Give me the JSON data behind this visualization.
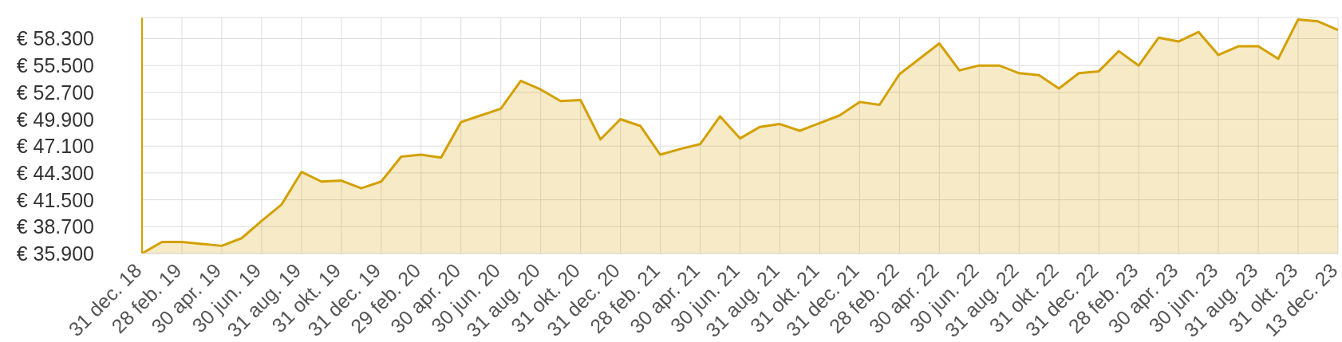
{
  "chart_data": {
    "type": "area",
    "categories": [
      "31 dec. 18",
      null,
      "28 feb. 19",
      null,
      "30 apr. 19",
      null,
      "30 jun. 19",
      null,
      "31 aug. 19",
      null,
      "31 okt. 19",
      null,
      "31 dec. 19",
      null,
      "29 feb. 20",
      null,
      "30 apr. 20",
      null,
      "30 jun. 20",
      null,
      "31 aug. 20",
      null,
      "31 okt. 20",
      null,
      "31 dec. 20",
      null,
      "28 feb. 21",
      null,
      "30 apr. 21",
      null,
      "30 jun. 21",
      null,
      "31 aug. 21",
      null,
      "31 okt. 21",
      null,
      "31 dec. 21",
      null,
      "28 feb. 22",
      null,
      "30 apr. 22",
      null,
      "30 jun. 22",
      null,
      "31 aug. 22",
      null,
      "31 okt. 22",
      null,
      "31 dec. 22",
      null,
      "28 feb. 23",
      null,
      "30 apr. 23",
      null,
      "30 jun. 23",
      null,
      "31 aug. 23",
      null,
      "31 okt. 23",
      null,
      "13 dec. 23"
    ],
    "series": [
      {
        "color": "#d4a000",
        "values": [
          35900,
          37100,
          37100,
          36900,
          36700,
          37500,
          39300,
          41000,
          44400,
          43400,
          43500,
          42700,
          43400,
          46000,
          46200,
          45900,
          49600,
          50300,
          51000,
          53900,
          53000,
          51800,
          51900,
          47800,
          49900,
          49200,
          46200,
          46800,
          47300,
          50200,
          47900,
          49100,
          49400,
          48700,
          49500,
          50300,
          51700,
          51400,
          54600,
          56200,
          57800,
          55000,
          55500,
          55500,
          54700,
          54500,
          53100,
          54700,
          54900,
          57000,
          55500,
          58400,
          58000,
          59000,
          56600,
          57500,
          57500,
          56200,
          60300,
          60100,
          59200
        ]
      }
    ],
    "ylim": [
      35900,
      60500
    ],
    "yticks": [
      {
        "value": 35900,
        "label": "€ 35.900"
      },
      {
        "value": 38700,
        "label": "€ 38.700"
      },
      {
        "value": 41500,
        "label": "€ 41.500"
      },
      {
        "value": 44300,
        "label": "€ 44.300"
      },
      {
        "value": 47100,
        "label": "€ 47.100"
      },
      {
        "value": 49900,
        "label": "€ 49.900"
      },
      {
        "value": 52700,
        "label": "€ 52.700"
      },
      {
        "value": 55500,
        "label": "€ 55.500"
      },
      {
        "value": 58300,
        "label": "€ 58.300"
      }
    ],
    "grid": true
  }
}
